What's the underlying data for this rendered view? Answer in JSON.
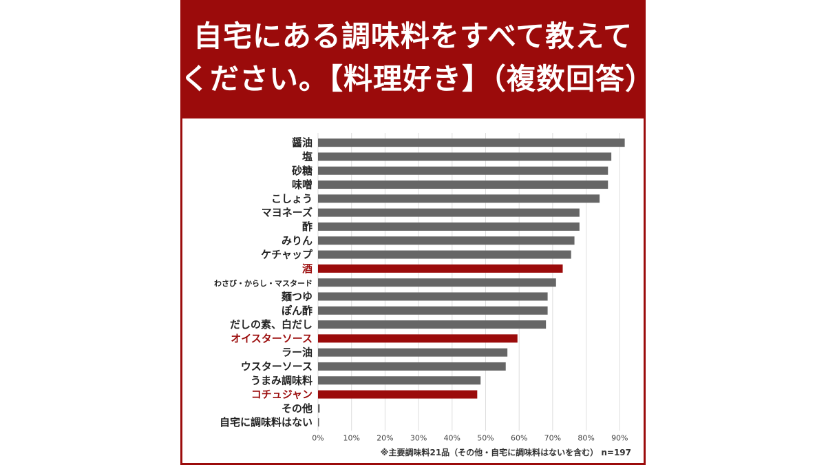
{
  "title_line1": "自宅にある調味料をすべて教えて",
  "title_line2": "ください。【料理好き】（複数回答）",
  "note": "※主要調味料21品（その他・自宅に調味料はないを含む） n=197",
  "colors": {
    "frame": "#9b0b0b",
    "bar_default": "#666666",
    "bar_highlight": "#9b0b0b",
    "label_highlight": "#9b0b0b",
    "grid": "#dddddd"
  },
  "chart_data": {
    "type": "bar",
    "orientation": "horizontal",
    "xlim": [
      0,
      90
    ],
    "xticks": [
      "0%",
      "10%",
      "20%",
      "30%",
      "40%",
      "50%",
      "60%",
      "70%",
      "80%",
      "90%"
    ],
    "grid": true,
    "categories": [
      "醤油",
      "塩",
      "砂糖",
      "味噌",
      "こしょう",
      "マヨネーズ",
      "酢",
      "みりん",
      "ケチャップ",
      "酒",
      "わさび・からし・マスタード",
      "麺つゆ",
      "ぽん酢",
      "だしの素、白だし",
      "オイスターソース",
      "ラー油",
      "ウスターソース",
      "うまみ調味料",
      "コチュジャン",
      "その他",
      "自宅に調味料はない"
    ],
    "values": [
      91.5,
      87.5,
      86.5,
      86.5,
      84,
      78,
      78,
      76.5,
      75.5,
      73,
      71,
      68.5,
      68.5,
      68,
      59.5,
      56.5,
      56,
      48.5,
      47.5,
      0.5,
      0
    ],
    "highlighted": [
      "酒",
      "オイスターソース",
      "コチュジャン"
    ],
    "unit": "%"
  }
}
